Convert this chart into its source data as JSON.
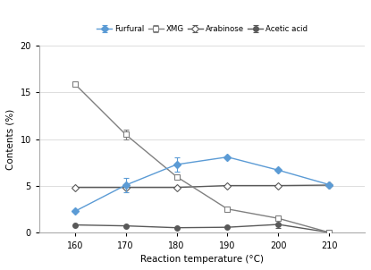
{
  "x": [
    160,
    170,
    180,
    190,
    200,
    210
  ],
  "furfural": [
    2.3,
    5.1,
    7.3,
    8.1,
    6.7,
    5.15
  ],
  "furfural_err": [
    0,
    0.8,
    0.8,
    0,
    0,
    0
  ],
  "xmg": [
    15.9,
    10.5,
    6.0,
    2.55,
    1.55,
    0.05
  ],
  "xmg_err": [
    0,
    0.55,
    0,
    0,
    0,
    0
  ],
  "arabinose": [
    4.85,
    4.85,
    4.85,
    5.05,
    5.05,
    5.1
  ],
  "arabinose_err": [
    0,
    0,
    0,
    0,
    0,
    0
  ],
  "acetic_acid": [
    0.85,
    0.75,
    0.55,
    0.6,
    0.9,
    0.05
  ],
  "acetic_acid_err": [
    0,
    0,
    0,
    0,
    0.35,
    0
  ],
  "xlabel": "Reaction temperature (°C)",
  "ylabel": "Contents (%)",
  "ylim": [
    0,
    20
  ],
  "yticks": [
    0,
    5,
    10,
    15,
    20
  ]
}
